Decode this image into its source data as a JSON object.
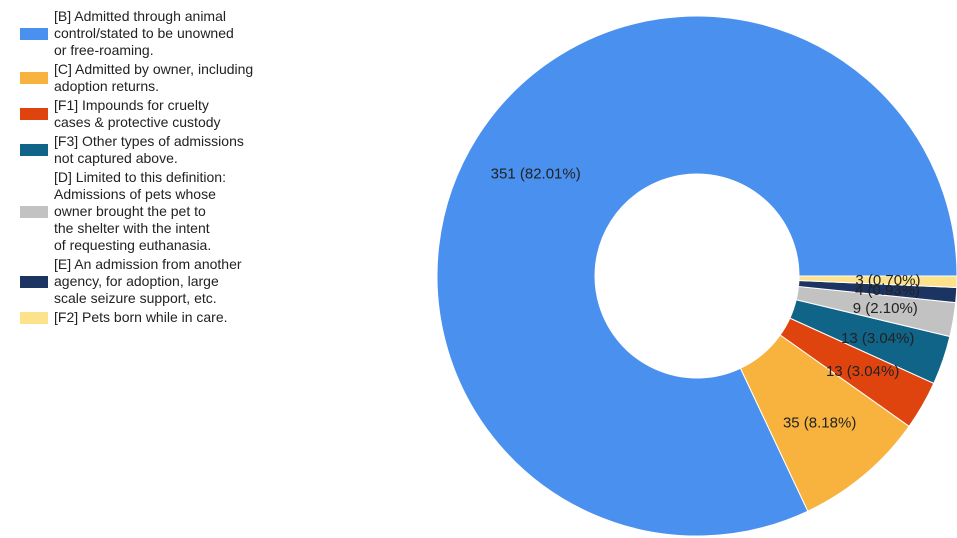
{
  "chart_data": {
    "type": "pie",
    "donut": true,
    "title": "",
    "legend_position": "left",
    "series": [
      {
        "label": "[B] Admitted through animal\ncontrol/stated to be unowned\nor free-roaming.",
        "value": 351,
        "percent": 82.01,
        "color": "#4a90ee",
        "data_label": "351 (82.01%)"
      },
      {
        "label": "[C] Admitted by owner, including\nadoption returns.",
        "value": 35,
        "percent": 8.18,
        "color": "#f7b33e",
        "data_label": "35 (8.18%)"
      },
      {
        "label": "[F1] Impounds for cruelty\ncases & protective custody",
        "value": 13,
        "percent": 3.04,
        "color": "#e0440e",
        "data_label": "13 (3.04%)"
      },
      {
        "label": "[F3] Other types of admissions\nnot captured above.",
        "value": 13,
        "percent": 3.04,
        "color": "#0f6488",
        "data_label": "13 (3.04%)"
      },
      {
        "label": "[D] Limited to this definition:\nAdmissions of pets whose\nowner brought the pet to\nthe shelter with the intent\nof requesting euthanasia.",
        "value": 9,
        "percent": 2.1,
        "color": "#c2c2c2",
        "data_label": "9 (2.10%)"
      },
      {
        "label": "[E] An admission from another\nagency, for adoption, large\nscale seizure support, etc.",
        "value": 4,
        "percent": 0.93,
        "color": "#1c3461",
        "data_label": "4 (0.93%)"
      },
      {
        "label": "[F2] Pets born while in care.",
        "value": 3,
        "percent": 0.7,
        "color": "#fbe28b",
        "data_label": "3 (0.70%)"
      }
    ]
  }
}
